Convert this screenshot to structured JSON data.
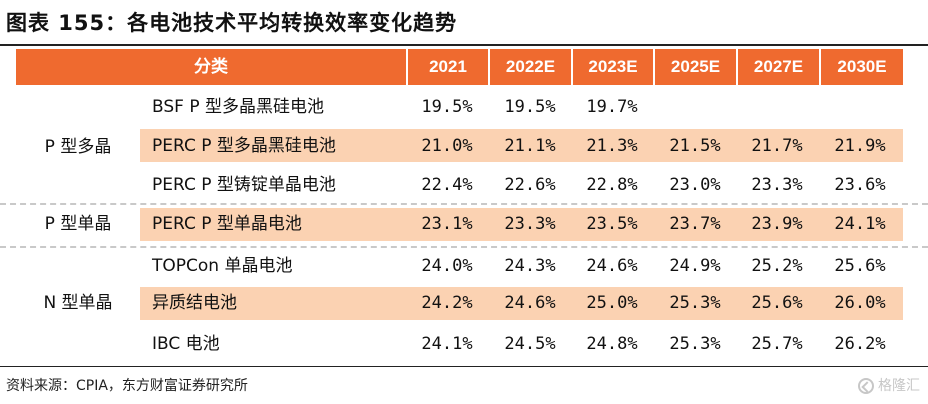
{
  "title": "图表 155：各电池技术平均转换效率变化趋势",
  "table": {
    "header": [
      "分类",
      "2021",
      "2022E",
      "2023E",
      "2025E",
      "2027E",
      "2030E"
    ],
    "groups": [
      {
        "label": "P 型多晶"
      },
      {
        "label": "P 型单晶"
      },
      {
        "label": "N 型单晶"
      }
    ],
    "rows": [
      {
        "sub": "BSF P 型多晶黑硅电池",
        "values": [
          "19.5%",
          "19.5%",
          "19.7%",
          "",
          "",
          ""
        ]
      },
      {
        "sub": "PERC P 型多晶黑硅电池",
        "values": [
          "21.0%",
          "21.1%",
          "21.3%",
          "21.5%",
          "21.7%",
          "21.9%"
        ]
      },
      {
        "sub": "PERC P 型铸锭单晶电池",
        "values": [
          "22.4%",
          "22.6%",
          "22.8%",
          "23.0%",
          "23.3%",
          "23.6%"
        ]
      },
      {
        "sub": "PERC P 型单晶电池",
        "values": [
          "23.1%",
          "23.3%",
          "23.5%",
          "23.7%",
          "23.9%",
          "24.1%"
        ]
      },
      {
        "sub": "TOPCon 单晶电池",
        "values": [
          "24.0%",
          "24.3%",
          "24.6%",
          "24.9%",
          "25.2%",
          "25.6%"
        ]
      },
      {
        "sub": "异质结电池",
        "values": [
          "24.2%",
          "24.6%",
          "25.0%",
          "25.3%",
          "25.6%",
          "26.0%"
        ]
      },
      {
        "sub": "IBC 电池",
        "values": [
          "24.1%",
          "24.5%",
          "24.8%",
          "25.3%",
          "25.7%",
          "26.2%"
        ]
      }
    ]
  },
  "source": "资料来源：CPIA，东方财富证券研究所",
  "watermark": "格隆汇"
}
